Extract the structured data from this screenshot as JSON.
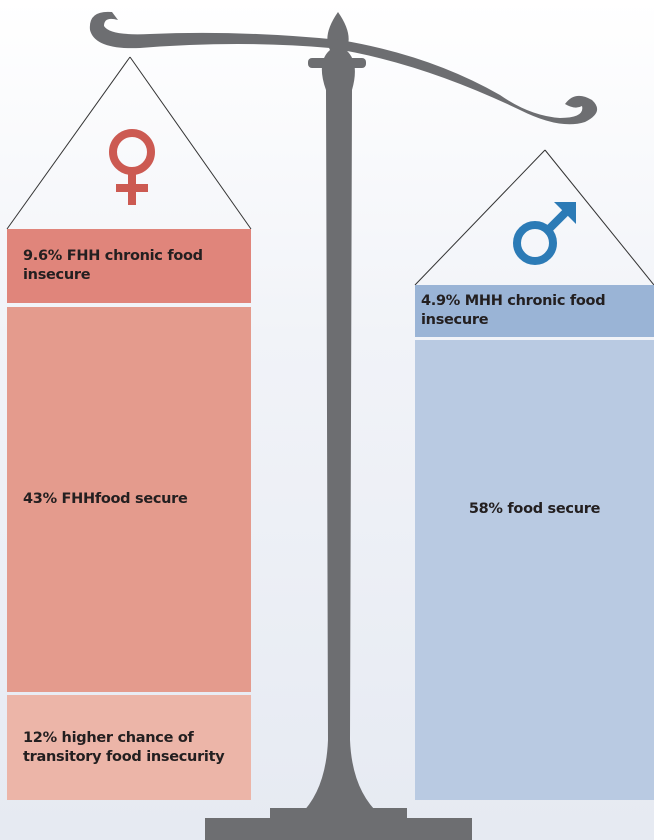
{
  "female": {
    "boxes": [
      "9.6% FHH chronic food insecure",
      "43% FHHfood secure",
      "12% higher chance of transitory food insecurity"
    ]
  },
  "male": {
    "boxes": [
      "4.9% MHH chronic food insecure",
      "58% food secure"
    ]
  }
}
